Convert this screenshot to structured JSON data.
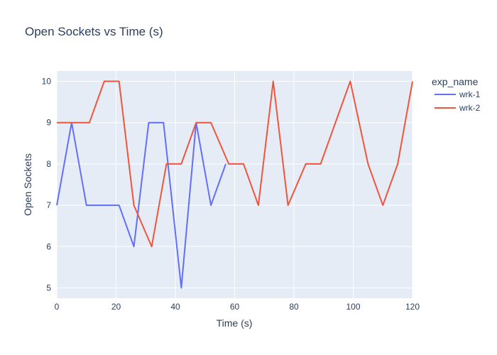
{
  "chart_data": {
    "type": "line",
    "title": "Open Sockets vs Time (s)",
    "xlabel": "Time (s)",
    "ylabel": "Open Sockets",
    "xlim": [
      0,
      120
    ],
    "ylim": [
      4.75,
      10.25
    ],
    "xticks": [
      0,
      20,
      40,
      60,
      80,
      100,
      120
    ],
    "yticks": [
      5,
      6,
      7,
      8,
      9,
      10
    ],
    "grid": true,
    "legend_title": "exp_name",
    "legend_position": "right",
    "series": [
      {
        "name": "wrk-1",
        "color": "#636efa",
        "x": [
          0,
          5,
          10,
          15,
          21,
          26,
          31,
          36,
          42,
          47,
          52,
          57
        ],
        "y": [
          7,
          9,
          7,
          7,
          7,
          6,
          9,
          9,
          5,
          9,
          7,
          8
        ]
      },
      {
        "name": "wrk-2",
        "color": "#ef553b",
        "x": [
          0,
          5,
          11,
          16,
          21,
          26,
          32,
          37,
          42,
          47,
          52,
          58,
          63,
          68,
          73,
          78,
          84,
          89,
          94,
          99,
          105,
          110,
          115,
          120
        ],
        "y": [
          9,
          9,
          9,
          10,
          10,
          7,
          6,
          8,
          8,
          9,
          9,
          8,
          8,
          7,
          10,
          7,
          8,
          8,
          9,
          10,
          8,
          7,
          8,
          10
        ]
      }
    ]
  }
}
